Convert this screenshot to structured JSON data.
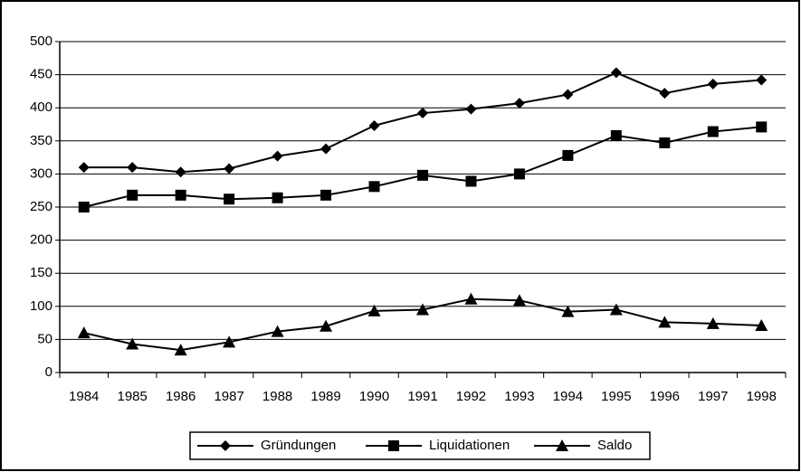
{
  "chart_data": {
    "type": "line",
    "categories": [
      "1984",
      "1985",
      "1986",
      "1987",
      "1988",
      "1989",
      "1990",
      "1991",
      "1992",
      "1993",
      "1994",
      "1995",
      "1996",
      "1997",
      "1998"
    ],
    "series": [
      {
        "name": "Gründungen",
        "color": "#000000",
        "marker": "diamond",
        "values": [
          310,
          310,
          303,
          308,
          327,
          338,
          373,
          392,
          398,
          407,
          420,
          453,
          422,
          436,
          442
        ]
      },
      {
        "name": "Liquidationen",
        "color": "#000000",
        "marker": "square",
        "values": [
          250,
          268,
          268,
          262,
          264,
          268,
          281,
          298,
          289,
          300,
          328,
          358,
          347,
          364,
          371
        ]
      },
      {
        "name": "Saldo",
        "color": "#000000",
        "marker": "triangle",
        "values": [
          60,
          43,
          34,
          46,
          62,
          70,
          93,
          95,
          111,
          109,
          92,
          95,
          76,
          74,
          71
        ]
      }
    ],
    "ylim": [
      0,
      500
    ],
    "yticks": [
      0,
      50,
      100,
      150,
      200,
      250,
      300,
      350,
      400,
      450,
      500
    ],
    "grid": true,
    "legend": "bottom"
  }
}
